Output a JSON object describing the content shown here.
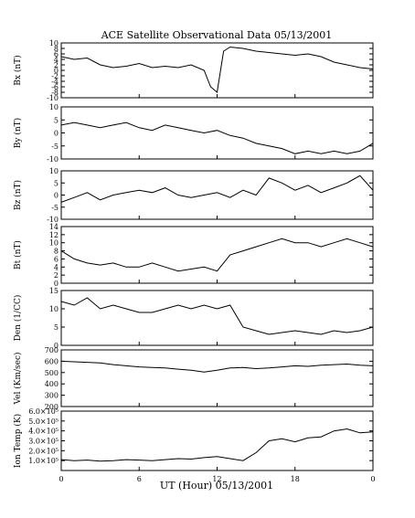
{
  "title": "ACE Satellite Observational Data   05/13/2001",
  "xlabel": "UT (Hour)   05/13/2001",
  "x_ticks": [
    "0",
    "6",
    "12",
    "18",
    "0"
  ],
  "chart_data": [
    {
      "type": "line",
      "ylabel": "Bx (nT)",
      "ylim": [
        -10,
        10
      ],
      "yticks": [
        "-10",
        "-8",
        "-6",
        "-4",
        "-2",
        "0",
        "2",
        "4",
        "6",
        "8",
        "10"
      ],
      "x": [
        0,
        1,
        2,
        3,
        4,
        5,
        6,
        7,
        8,
        9,
        10,
        11,
        11.5,
        12,
        12.5,
        13,
        14,
        15,
        16,
        17,
        18,
        19,
        20,
        21,
        22,
        23,
        24
      ],
      "values": [
        5,
        4,
        4.5,
        2,
        1,
        1.5,
        2.5,
        1,
        1.5,
        1,
        2,
        0,
        -6,
        -8,
        7,
        8.5,
        8,
        7,
        6.5,
        6,
        5.5,
        6,
        5,
        3,
        2,
        1,
        0.5
      ]
    },
    {
      "type": "line",
      "ylabel": "By (nT)",
      "ylim": [
        -10,
        10
      ],
      "yticks": [
        "-10",
        "-5",
        "0",
        "5",
        "10"
      ],
      "x": [
        0,
        1,
        2,
        3,
        4,
        5,
        6,
        7,
        8,
        9,
        10,
        11,
        12,
        13,
        14,
        15,
        16,
        17,
        18,
        19,
        20,
        21,
        22,
        23,
        24
      ],
      "values": [
        3,
        4,
        3,
        2,
        3,
        4,
        2,
        1,
        3,
        2,
        1,
        0,
        1,
        -1,
        -2,
        -4,
        -5,
        -6,
        -8,
        -7,
        -8,
        -7,
        -8,
        -7,
        -4
      ]
    },
    {
      "type": "line",
      "ylabel": "Bz (nT)",
      "ylim": [
        -10,
        10
      ],
      "yticks": [
        "-10",
        "-5",
        "0",
        "5",
        "10"
      ],
      "x": [
        0,
        1,
        2,
        3,
        4,
        5,
        6,
        7,
        8,
        9,
        10,
        11,
        12,
        13,
        14,
        15,
        16,
        17,
        18,
        19,
        20,
        21,
        22,
        23,
        24
      ],
      "values": [
        -3,
        -1,
        1,
        -2,
        0,
        1,
        2,
        1,
        3,
        0,
        -1,
        0,
        1,
        -1,
        2,
        0,
        7,
        5,
        2,
        4,
        1,
        3,
        5,
        8,
        2
      ]
    },
    {
      "type": "line",
      "ylabel": "Bt (nT)",
      "ylim": [
        0,
        14
      ],
      "yticks": [
        "0",
        "2",
        "4",
        "6",
        "8",
        "10",
        "12",
        "14"
      ],
      "x": [
        0,
        1,
        2,
        3,
        4,
        5,
        6,
        7,
        8,
        9,
        10,
        11,
        12,
        13,
        14,
        15,
        16,
        17,
        18,
        19,
        20,
        21,
        22,
        23,
        24
      ],
      "values": [
        8,
        6,
        5,
        4.5,
        5,
        4,
        4,
        5,
        4,
        3,
        3.5,
        4,
        3,
        7,
        8,
        9,
        10,
        11,
        10,
        10,
        9,
        10,
        11,
        10,
        9
      ]
    },
    {
      "type": "line",
      "ylabel": "Den (1/CC)",
      "ylim": [
        0,
        15
      ],
      "yticks": [
        "0",
        "5",
        "10",
        "15"
      ],
      "x": [
        0,
        1,
        2,
        3,
        4,
        5,
        6,
        7,
        8,
        9,
        10,
        11,
        12,
        13,
        14,
        15,
        16,
        17,
        18,
        19,
        20,
        21,
        22,
        23,
        24
      ],
      "values": [
        12,
        11,
        13,
        10,
        11,
        10,
        9,
        9,
        10,
        11,
        10,
        11,
        10,
        11,
        5,
        4,
        3,
        3.5,
        4,
        3.5,
        3,
        4,
        3.5,
        4,
        5
      ]
    },
    {
      "type": "line",
      "ylabel": "Vel (Km/sec)",
      "ylim": [
        200,
        700
      ],
      "yticks": [
        "200",
        "300",
        "400",
        "500",
        "600",
        "700"
      ],
      "x": [
        0,
        1,
        2,
        3,
        4,
        5,
        6,
        7,
        8,
        9,
        10,
        11,
        12,
        13,
        14,
        15,
        16,
        17,
        18,
        19,
        20,
        21,
        22,
        23,
        24
      ],
      "values": [
        600,
        595,
        590,
        585,
        570,
        560,
        550,
        545,
        540,
        530,
        520,
        505,
        520,
        540,
        545,
        535,
        540,
        550,
        560,
        555,
        565,
        570,
        575,
        565,
        560
      ]
    },
    {
      "type": "line",
      "ylabel": "Ion Temp (K)",
      "ylim": [
        0,
        600000
      ],
      "yticks": [
        "1.0×10⁵",
        "2.0×10⁵",
        "3.0×10⁵",
        "4.0×10⁵",
        "5.0×10⁵",
        "6.0×10⁵"
      ],
      "x": [
        0,
        1,
        2,
        3,
        4,
        5,
        6,
        7,
        8,
        9,
        10,
        11,
        12,
        13,
        14,
        15,
        16,
        17,
        18,
        19,
        20,
        21,
        22,
        23,
        24
      ],
      "values": [
        110000,
        100000,
        105000,
        95000,
        100000,
        110000,
        105000,
        100000,
        110000,
        120000,
        115000,
        130000,
        140000,
        120000,
        100000,
        180000,
        300000,
        320000,
        290000,
        330000,
        340000,
        400000,
        420000,
        380000,
        390000
      ]
    }
  ]
}
